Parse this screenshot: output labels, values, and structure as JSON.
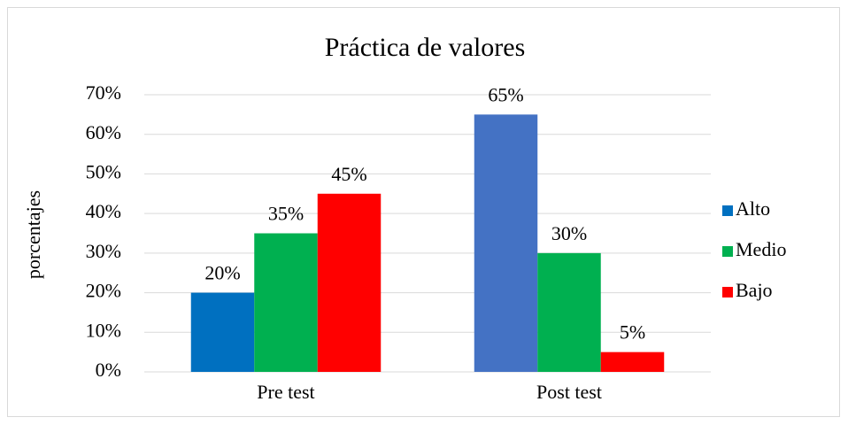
{
  "chart_data": {
    "type": "bar",
    "title": "Práctica de valores",
    "y_label": "porcentajes",
    "categories": [
      "Pre test",
      "Post test"
    ],
    "series": [
      {
        "name": "Alto",
        "color": "#0070c0",
        "point_colors": [
          "#0070c0",
          "#4472c4"
        ],
        "values": [
          20,
          65
        ],
        "value_labels": [
          "20%",
          "65%"
        ]
      },
      {
        "name": "Medio",
        "color": "#00b050",
        "values": [
          35,
          30
        ],
        "value_labels": [
          "35%",
          "30%"
        ]
      },
      {
        "name": "Bajo",
        "color": "#ff0000",
        "values": [
          45,
          5
        ],
        "value_labels": [
          "45%",
          "5%"
        ]
      }
    ],
    "ylim": [
      0,
      70
    ],
    "yticks": [
      {
        "value": 0,
        "label": "0%"
      },
      {
        "value": 10,
        "label": "10%"
      },
      {
        "value": 20,
        "label": "20%"
      },
      {
        "value": 30,
        "label": "30%"
      },
      {
        "value": 40,
        "label": "40%"
      },
      {
        "value": 50,
        "label": "50%"
      },
      {
        "value": 60,
        "label": "60%"
      },
      {
        "value": 70,
        "label": "70%"
      }
    ],
    "grid": true,
    "legend": "right"
  }
}
